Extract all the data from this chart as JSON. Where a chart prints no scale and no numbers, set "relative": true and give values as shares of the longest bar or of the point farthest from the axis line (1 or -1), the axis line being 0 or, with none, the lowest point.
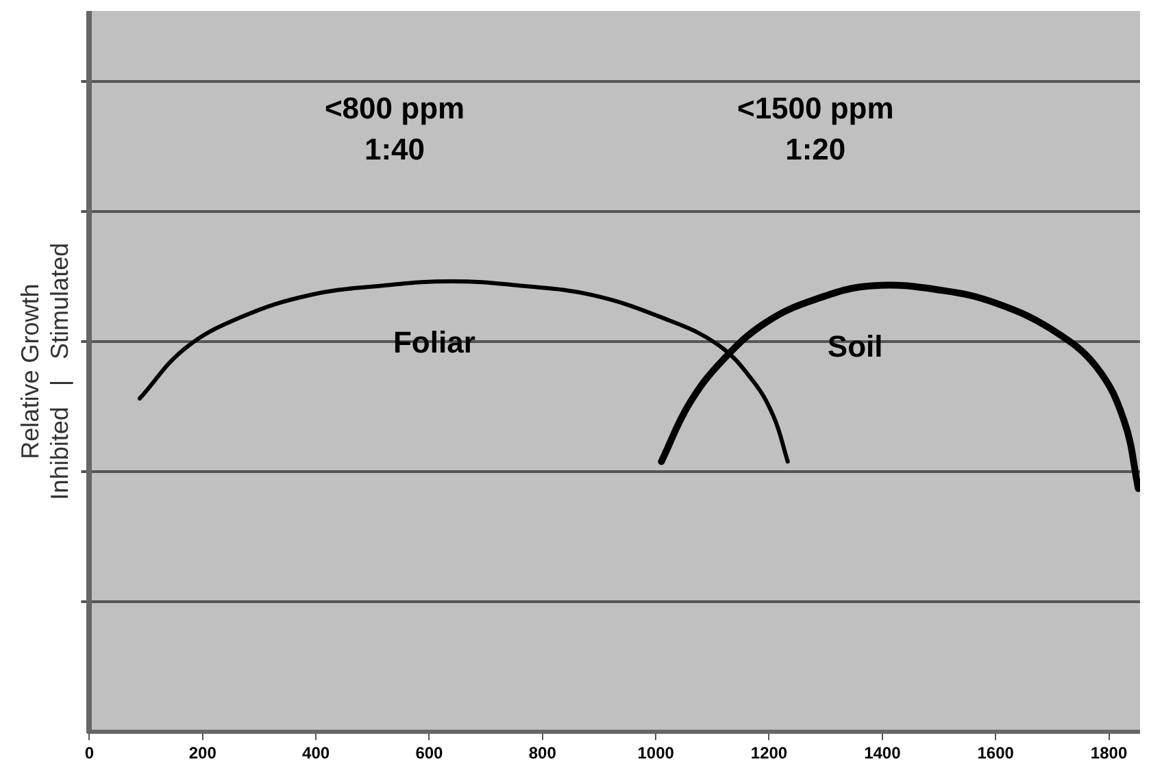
{
  "chart_data": {
    "type": "line",
    "relative": true,
    "ylabel": "Relative Growth\nInhibited   |   Stimulated",
    "xlim": [
      0,
      1855
    ],
    "xticks": [
      0,
      200,
      400,
      600,
      800,
      1000,
      1200,
      1400,
      1600,
      1800
    ],
    "grid": "y",
    "marker": "none",
    "line_style": "solid",
    "legend": false,
    "annotations": [
      "<800 ppm\n1:40",
      "<1500 ppm\n1:20"
    ],
    "series": [
      {
        "name": "Foliar",
        "color": "#000000",
        "x": [
          89,
          168,
          267,
          391,
          515,
          639,
          763,
          886,
          1010,
          1109,
          1171,
          1208,
          1233
        ],
        "values": [
          0.74,
          0.85,
          0.92,
          0.97,
          0.99,
          1.0,
          0.99,
          0.97,
          0.92,
          0.86,
          0.78,
          0.7,
          0.6
        ]
      },
      {
        "name": "Soil",
        "color": "#000000",
        "x": [
          1010,
          1060,
          1122,
          1196,
          1282,
          1382,
          1505,
          1604,
          1703,
          1778,
          1827,
          1852
        ],
        "values": [
          0.6,
          0.73,
          0.83,
          0.91,
          0.96,
          0.99,
          0.98,
          0.95,
          0.89,
          0.81,
          0.69,
          0.54
        ]
      }
    ]
  }
}
